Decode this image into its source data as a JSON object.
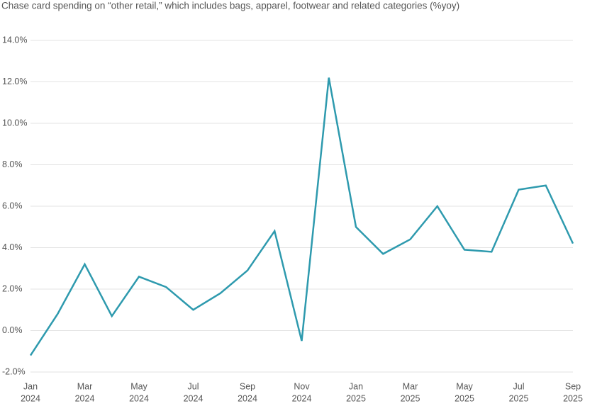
{
  "chart_data": {
    "type": "line",
    "title": "Chase card spending on “other retail,” which includes bags, apparel, footwear and related categories (%yoy)",
    "categories": [
      [
        "Jan",
        "2024"
      ],
      null,
      [
        "Mar",
        "2024"
      ],
      null,
      [
        "May",
        "2024"
      ],
      null,
      [
        "Jul",
        "2024"
      ],
      null,
      [
        "Sep",
        "2024"
      ],
      null,
      [
        "Nov",
        "2024"
      ],
      null,
      [
        "Jan",
        "2025"
      ],
      null,
      [
        "Mar",
        "2025"
      ],
      null,
      [
        "May",
        "2025"
      ],
      null,
      [
        "Jul",
        "2025"
      ],
      null,
      [
        "Sep",
        "2025"
      ]
    ],
    "series": [
      {
        "color": "#2e9aae",
        "values": [
          -1.2,
          0.8,
          3.2,
          0.7,
          2.6,
          2.1,
          1.0,
          1.8,
          2.9,
          4.8,
          -0.5,
          12.2,
          5.0,
          3.7,
          4.4,
          6.0,
          3.9,
          3.8,
          6.8,
          7.0,
          4.2
        ]
      }
    ],
    "ylim": [
      -2,
      14
    ],
    "yticks": [
      {
        "value": -2,
        "label": "-2.0%"
      },
      {
        "value": 0,
        "label": "0.0%"
      },
      {
        "value": 2,
        "label": "2.0%"
      },
      {
        "value": 4,
        "label": "4.0%"
      },
      {
        "value": 6,
        "label": "6.0%"
      },
      {
        "value": 8,
        "label": "8.0%"
      },
      {
        "value": 10,
        "label": "10.0%"
      },
      {
        "value": 12,
        "label": "12.0%"
      },
      {
        "value": 14,
        "label": "14.0%"
      }
    ],
    "grid": true
  }
}
